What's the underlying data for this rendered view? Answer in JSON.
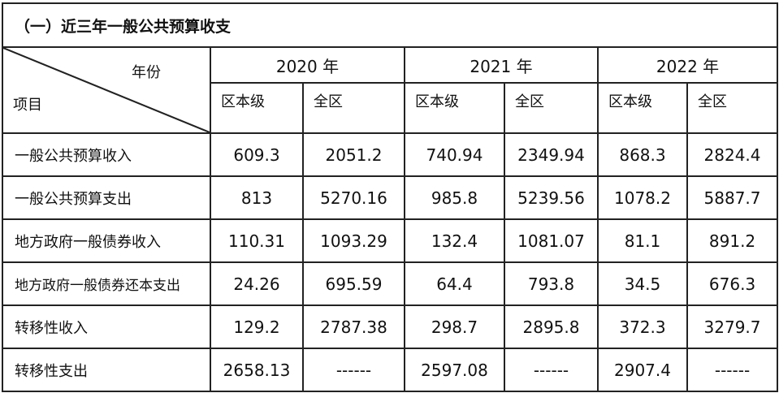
{
  "title": "（一）近三年一般公共预算收支",
  "header": {
    "corner_year_label": "年份",
    "corner_item_label": "项目",
    "years": [
      "2020 年",
      "2021 年",
      "2022 年"
    ],
    "sub_columns": [
      "区本级",
      "全区"
    ]
  },
  "rows": [
    {
      "label": "一般公共预算收入",
      "values": [
        "609.3",
        "2051.2",
        "740.94",
        "2349.94",
        "868.3",
        "2824.4"
      ]
    },
    {
      "label": "一般公共预算支出",
      "values": [
        "813",
        "5270.16",
        "985.8",
        "5239.56",
        "1078.2",
        "5887.7"
      ]
    },
    {
      "label": "地方政府一般债券收入",
      "values": [
        "110.31",
        "1093.29",
        "132.4",
        "1081.07",
        "81.1",
        "891.2"
      ]
    },
    {
      "label": "地方政府一般债券还本支出",
      "values": [
        "24.26",
        "695.59",
        "64.4",
        "793.8",
        "34.5",
        "676.3"
      ]
    },
    {
      "label": "转移性收入",
      "values": [
        "129.2",
        "2787.38",
        "298.7",
        "2895.8",
        "372.3",
        "3279.7"
      ]
    },
    {
      "label": "转移性支出",
      "values": [
        "2658.13",
        "------",
        "2597.08",
        "------",
        "2907.4",
        "------"
      ]
    }
  ]
}
